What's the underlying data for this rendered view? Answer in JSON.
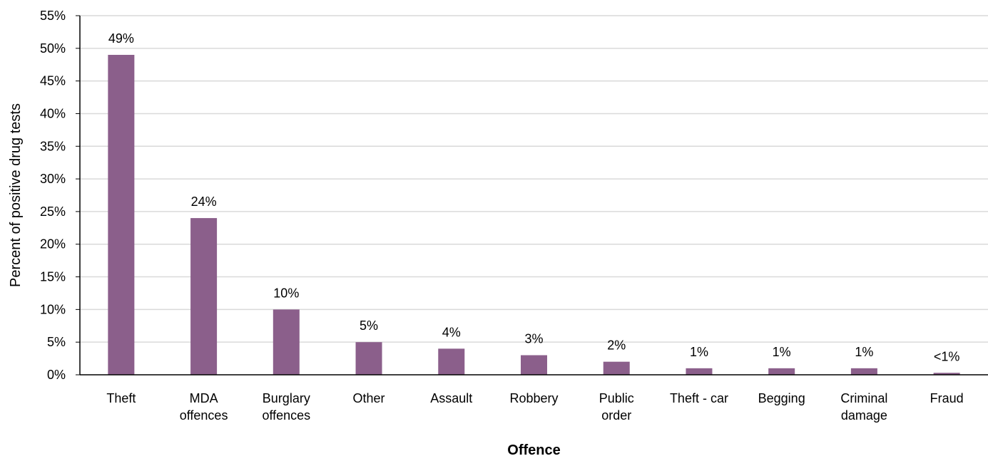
{
  "chart_data": {
    "type": "bar",
    "title": "",
    "xlabel": "Offence",
    "ylabel": "Percent of positive drug tests",
    "ylim": [
      0,
      55
    ],
    "ytick_step": 5,
    "ytick_suffix": "%",
    "grid": true,
    "legend": "none",
    "bar_color": "#8B5F8B",
    "grid_color": "#D9D9D9",
    "categories": [
      [
        "Theft"
      ],
      [
        "MDA",
        "offences"
      ],
      [
        "Burglary",
        "offences"
      ],
      [
        "Other"
      ],
      [
        "Assault"
      ],
      [
        "Robbery"
      ],
      [
        "Public",
        "order"
      ],
      [
        "Theft - car"
      ],
      [
        "Begging"
      ],
      [
        "Criminal",
        "damage"
      ],
      [
        "Fraud"
      ]
    ],
    "values": [
      49,
      24,
      10,
      5,
      4,
      3,
      2,
      1,
      1,
      1,
      0.3
    ],
    "data_labels": [
      "49%",
      "24%",
      "10%",
      "5%",
      "4%",
      "3%",
      "2%",
      "1%",
      "1%",
      "1%",
      "<1%"
    ]
  }
}
